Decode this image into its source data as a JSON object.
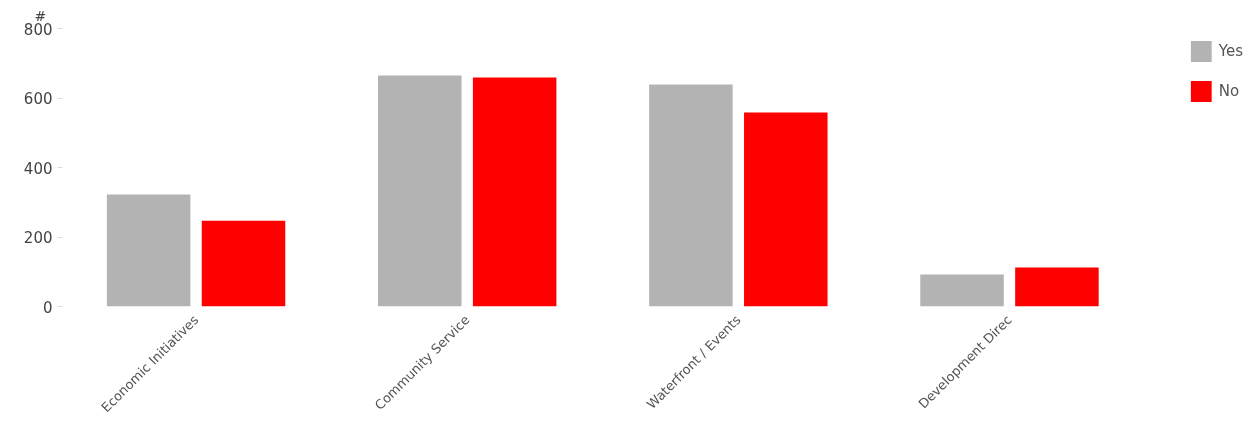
{
  "chart_data": {
    "type": "bar",
    "ylabel": "#",
    "categories": [
      "Economic Initiatives",
      "Community Service",
      "Waterfront / Events",
      "Development Direc"
    ],
    "series": [
      {
        "name": "Yes",
        "color": "#b3b3b3",
        "values": [
          322,
          665,
          639,
          92
        ]
      },
      {
        "name": "No",
        "color": "#ff0000",
        "values": [
          247,
          659,
          558,
          112
        ]
      }
    ],
    "ylim": [
      0,
      800
    ],
    "yticks": [
      0,
      200,
      400,
      600,
      800
    ],
    "grid": false,
    "legend": "top right"
  }
}
